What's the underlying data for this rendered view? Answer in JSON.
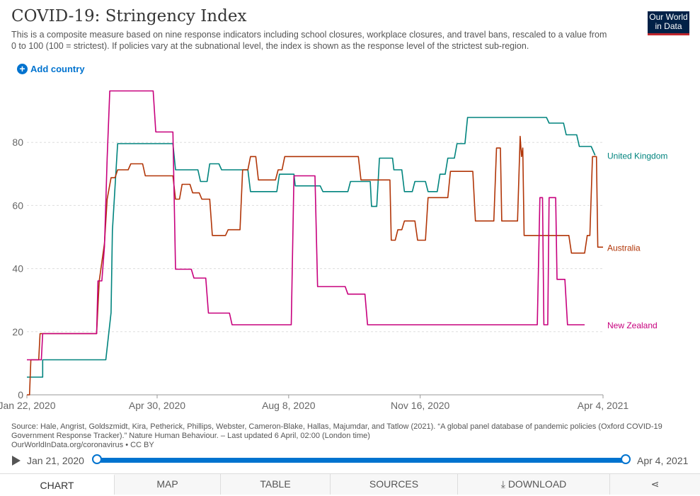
{
  "header": {
    "title": "COVID-19: Stringency Index",
    "subtitle": "This is a composite measure based on nine response indicators including school closures, workplace closures, and travel bans, rescaled to a value from 0 to 100 (100 = strictest). If policies vary at the subnational level, the index is shown as the response level of the strictest sub-region.",
    "logo_line1": "Our World",
    "logo_line2": "in Data",
    "add_country": "Add country",
    "plus_glyph": "+"
  },
  "chart_data": {
    "type": "line",
    "title": "COVID-19: Stringency Index",
    "xlabel": "",
    "ylabel": "",
    "x_range": [
      "2020-01-22",
      "2021-04-04"
    ],
    "ylim": [
      0,
      100
    ],
    "yticks": [
      0,
      20,
      40,
      60,
      80
    ],
    "xticks": [
      "Jan 22, 2020",
      "Apr 30, 2020",
      "Aug 8, 2020",
      "Nov 16, 2020",
      "Apr 4, 2021"
    ],
    "grid": true,
    "legend": "line-end labels",
    "series": [
      {
        "name": "United Kingdom",
        "color": "#00847e",
        "points": [
          [
            "2020-01-22",
            5.6
          ],
          [
            "2020-02-03",
            5.6
          ],
          [
            "2020-02-03",
            11.1
          ],
          [
            "2020-03-22",
            11.1
          ],
          [
            "2020-03-26",
            26
          ],
          [
            "2020-03-27",
            52
          ],
          [
            "2020-03-31",
            79.6
          ],
          [
            "2020-05-12",
            79.6
          ],
          [
            "2020-05-14",
            71.3
          ],
          [
            "2020-05-31",
            71.3
          ],
          [
            "2020-06-02",
            67.6
          ],
          [
            "2020-06-07",
            67.6
          ],
          [
            "2020-06-09",
            73.2
          ],
          [
            "2020-06-16",
            73.2
          ],
          [
            "2020-06-18",
            71.3
          ],
          [
            "2020-07-08",
            71.3
          ],
          [
            "2020-07-10",
            64.4
          ],
          [
            "2020-07-30",
            64.4
          ],
          [
            "2020-08-01",
            69.9
          ],
          [
            "2020-08-12",
            69.9
          ],
          [
            "2020-08-13",
            66.2
          ],
          [
            "2020-09-01",
            66.2
          ],
          [
            "2020-09-03",
            64.4
          ],
          [
            "2020-09-22",
            64.4
          ],
          [
            "2020-09-24",
            67.6
          ],
          [
            "2020-10-09",
            67.6
          ],
          [
            "2020-10-10",
            59.7
          ],
          [
            "2020-10-14",
            59.7
          ],
          [
            "2020-10-16",
            75
          ],
          [
            "2020-10-26",
            75
          ],
          [
            "2020-10-27",
            71.3
          ],
          [
            "2020-11-02",
            71.3
          ],
          [
            "2020-11-04",
            64.4
          ],
          [
            "2020-11-10",
            64.4
          ],
          [
            "2020-11-12",
            67.6
          ],
          [
            "2020-11-20",
            67.6
          ],
          [
            "2020-11-22",
            64.4
          ],
          [
            "2020-11-29",
            64.4
          ],
          [
            "2020-12-01",
            69.9
          ],
          [
            "2020-12-05",
            69.9
          ],
          [
            "2020-12-07",
            75
          ],
          [
            "2020-12-12",
            75
          ],
          [
            "2020-12-14",
            79.6
          ],
          [
            "2020-12-20",
            79.6
          ],
          [
            "2020-12-22",
            87.9
          ],
          [
            "2021-02-20",
            87.9
          ],
          [
            "2021-02-22",
            86.1
          ],
          [
            "2021-03-05",
            86.1
          ],
          [
            "2021-03-07",
            82.4
          ],
          [
            "2021-03-15",
            82.4
          ],
          [
            "2021-03-17",
            78.7
          ],
          [
            "2021-03-26",
            78.7
          ],
          [
            "2021-03-29",
            75.9
          ]
        ]
      },
      {
        "name": "Australia",
        "color": "#b13507",
        "points": [
          [
            "2020-01-22",
            0
          ],
          [
            "2020-01-24",
            0
          ],
          [
            "2020-01-25",
            11.1
          ],
          [
            "2020-01-31",
            11.1
          ],
          [
            "2020-02-01",
            19.4
          ],
          [
            "2020-03-15",
            19.4
          ],
          [
            "2020-03-17",
            36.1
          ],
          [
            "2020-03-21",
            48
          ],
          [
            "2020-03-23",
            62
          ],
          [
            "2020-03-26",
            68.8
          ],
          [
            "2020-03-29",
            68.8
          ],
          [
            "2020-03-31",
            71.3
          ],
          [
            "2020-04-08",
            71.3
          ],
          [
            "2020-04-10",
            73.2
          ],
          [
            "2020-04-19",
            73.2
          ],
          [
            "2020-04-21",
            69.4
          ],
          [
            "2020-05-12",
            69.4
          ],
          [
            "2020-05-14",
            62
          ],
          [
            "2020-05-17",
            62
          ],
          [
            "2020-05-19",
            66.7
          ],
          [
            "2020-05-25",
            66.7
          ],
          [
            "2020-05-27",
            64
          ],
          [
            "2020-06-01",
            64
          ],
          [
            "2020-06-03",
            62
          ],
          [
            "2020-06-09",
            62
          ],
          [
            "2020-06-11",
            50.5
          ],
          [
            "2020-06-21",
            50.5
          ],
          [
            "2020-06-23",
            52.3
          ],
          [
            "2020-07-02",
            52.3
          ],
          [
            "2020-07-04",
            71.3
          ],
          [
            "2020-07-08",
            71.3
          ],
          [
            "2020-07-10",
            75.5
          ],
          [
            "2020-07-14",
            75.5
          ],
          [
            "2020-07-16",
            68.1
          ],
          [
            "2020-07-29",
            68.1
          ],
          [
            "2020-07-31",
            71.3
          ],
          [
            "2020-08-03",
            71.3
          ],
          [
            "2020-08-05",
            75.5
          ],
          [
            "2020-09-30",
            75.5
          ],
          [
            "2020-10-02",
            68.1
          ],
          [
            "2020-10-24",
            68.1
          ],
          [
            "2020-10-25",
            49
          ],
          [
            "2020-10-28",
            49
          ],
          [
            "2020-10-30",
            52.3
          ],
          [
            "2020-11-02",
            52.3
          ],
          [
            "2020-11-04",
            55.1
          ],
          [
            "2020-11-12",
            55.1
          ],
          [
            "2020-11-14",
            49
          ],
          [
            "2020-11-20",
            49
          ],
          [
            "2020-11-22",
            62.5
          ],
          [
            "2020-12-07",
            62.5
          ],
          [
            "2020-12-09",
            70.8
          ],
          [
            "2020-12-26",
            70.8
          ],
          [
            "2020-12-28",
            55.1
          ],
          [
            "2021-01-11",
            55.1
          ],
          [
            "2021-01-13",
            78.2
          ],
          [
            "2021-01-16",
            78.2
          ],
          [
            "2021-01-17",
            55.1
          ],
          [
            "2021-01-29",
            55.1
          ],
          [
            "2021-01-31",
            81.9
          ],
          [
            "2021-02-01",
            75.5
          ],
          [
            "2021-02-02",
            78.2
          ],
          [
            "2021-02-03",
            50.5
          ],
          [
            "2021-03-09",
            50.5
          ],
          [
            "2021-03-11",
            44.9
          ],
          [
            "2021-03-21",
            44.9
          ],
          [
            "2021-03-23",
            50.5
          ],
          [
            "2021-03-25",
            50.5
          ],
          [
            "2021-03-27",
            75.5
          ],
          [
            "2021-03-30",
            75.5
          ],
          [
            "2021-03-31",
            46.8
          ],
          [
            "2021-04-04",
            46.8
          ]
        ]
      },
      {
        "name": "New Zealand",
        "color": "#c7007d",
        "points": [
          [
            "2020-01-22",
            11.1
          ],
          [
            "2020-02-02",
            11.1
          ],
          [
            "2020-02-03",
            19.4
          ],
          [
            "2020-03-15",
            19.4
          ],
          [
            "2020-03-16",
            36.1
          ],
          [
            "2020-03-19",
            36.1
          ],
          [
            "2020-03-21",
            47
          ],
          [
            "2020-03-23",
            75
          ],
          [
            "2020-03-25",
            96.3
          ],
          [
            "2020-04-27",
            96.3
          ],
          [
            "2020-04-29",
            83.3
          ],
          [
            "2020-05-12",
            83.3
          ],
          [
            "2020-05-14",
            39.8
          ],
          [
            "2020-05-26",
            39.8
          ],
          [
            "2020-05-28",
            37
          ],
          [
            "2020-06-06",
            37
          ],
          [
            "2020-06-08",
            25.9
          ],
          [
            "2020-06-24",
            25.9
          ],
          [
            "2020-06-26",
            22.2
          ],
          [
            "2020-08-10",
            22.2
          ],
          [
            "2020-08-12",
            69.4
          ],
          [
            "2020-08-28",
            69.4
          ],
          [
            "2020-08-30",
            34.3
          ],
          [
            "2020-09-20",
            34.3
          ],
          [
            "2020-09-22",
            31.9
          ],
          [
            "2020-10-05",
            31.9
          ],
          [
            "2020-10-07",
            22.2
          ],
          [
            "2021-02-13",
            22.2
          ],
          [
            "2021-02-15",
            62.5
          ],
          [
            "2021-02-17",
            62.5
          ],
          [
            "2021-02-18",
            22.2
          ],
          [
            "2021-02-21",
            22.2
          ],
          [
            "2021-02-22",
            62.5
          ],
          [
            "2021-02-27",
            62.5
          ],
          [
            "2021-02-28",
            36.6
          ],
          [
            "2021-03-06",
            36.6
          ],
          [
            "2021-03-08",
            22.2
          ],
          [
            "2021-03-21",
            22.2
          ]
        ]
      }
    ]
  },
  "footer": {
    "source_line1": "Source: Hale, Angrist, Goldszmidt, Kira, Petherick, Phillips, Webster, Cameron-Blake, Hallas, Majumdar, and Tatlow (2021). “A global panel database of pandemic policies (Oxford COVID-19",
    "source_line2": "Government Response Tracker).” Nature Human Behaviour. – Last updated 6 April, 02:00 (London time)",
    "source_line3": "OurWorldInData.org/coronavirus • CC BY"
  },
  "timeline": {
    "start_label": "Jan 21, 2020",
    "end_label": "Apr 4, 2021",
    "selected_start": "2020-01-21",
    "selected_end": "2021-04-04"
  },
  "tabs": [
    "CHART",
    "MAP",
    "TABLE",
    "SOURCES",
    "DOWNLOAD"
  ],
  "active_tab": "CHART",
  "download_glyph": "⤓",
  "share_glyph": "⋖"
}
